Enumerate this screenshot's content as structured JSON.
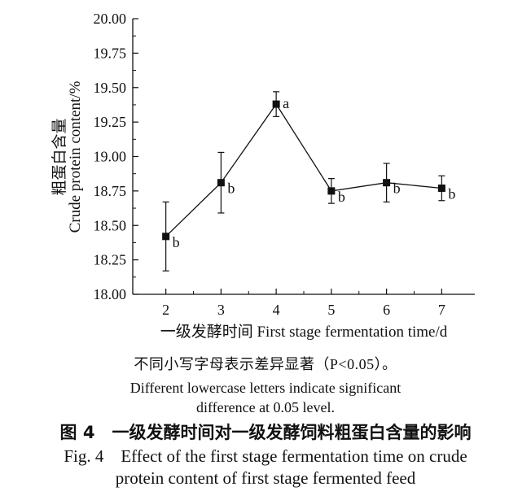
{
  "chart_data": {
    "type": "line",
    "xlabel": "一级发酵时间 First stage fermentation time/d",
    "ylabel_cn": "粗蛋白含量",
    "ylabel_en": "Crude protein content/%",
    "ylim": [
      18.0,
      20.0
    ],
    "xlim": [
      1.4,
      7.6
    ],
    "x": [
      2,
      3,
      4,
      5,
      6,
      7
    ],
    "values": [
      18.42,
      18.81,
      19.38,
      18.75,
      18.81,
      18.77
    ],
    "errors": [
      0.25,
      0.22,
      0.09,
      0.09,
      0.14,
      0.09
    ],
    "labels": [
      "b",
      "b",
      "a",
      "b",
      "b",
      "b"
    ],
    "yticks": [
      "18.00",
      "18.25",
      "18.50",
      "18.75",
      "19.00",
      "19.25",
      "19.50",
      "19.75",
      "20.00"
    ],
    "xticks": [
      "2",
      "3",
      "4",
      "5",
      "6",
      "7"
    ]
  },
  "notes": {
    "cn": "不同小写字母表示差异显著（P<0.05）。",
    "en_line1": "Different lowercase letters indicate significant",
    "en_line2": "difference at 0.05 level."
  },
  "caption": {
    "cn": "图 4　一级发酵时间对一级发酵饲料粗蛋白含量的影响",
    "en_line1": "Fig. 4　Effect of the first stage fermentation time on crude",
    "en_line2": "protein content of first stage fermented feed"
  }
}
